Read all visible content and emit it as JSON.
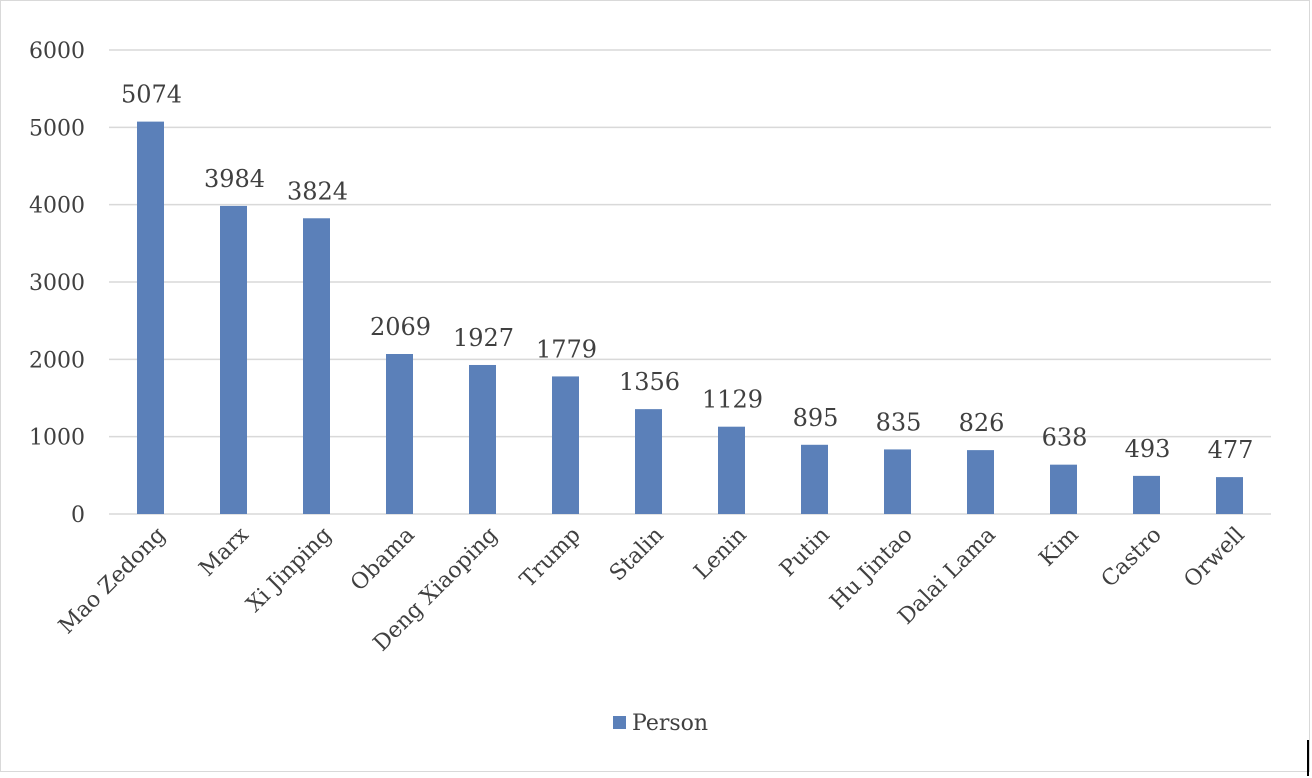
{
  "chart_data": {
    "type": "bar",
    "categories": [
      "Mao Zedong",
      "Marx",
      "Xi Jinping",
      "Obama",
      "Deng Xiaoping",
      "Trump",
      "Stalin",
      "Lenin",
      "Putin",
      "Hu Jintao",
      "Dalai Lama",
      "Kim",
      "Castro",
      "Orwell"
    ],
    "series": [
      {
        "name": "Person",
        "values": [
          5074,
          3984,
          3824,
          2069,
          1927,
          1779,
          1356,
          1129,
          895,
          835,
          826,
          638,
          493,
          477
        ],
        "color": "#5b80b9"
      }
    ],
    "title": "",
    "xlabel": "",
    "ylabel": "",
    "ylim": [
      0,
      6000
    ],
    "yticks": [
      0,
      1000,
      2000,
      3000,
      4000,
      5000,
      6000
    ],
    "grid": true,
    "gridColor": "#d9d9d9",
    "legend": "bottom",
    "dataLabels": true
  }
}
